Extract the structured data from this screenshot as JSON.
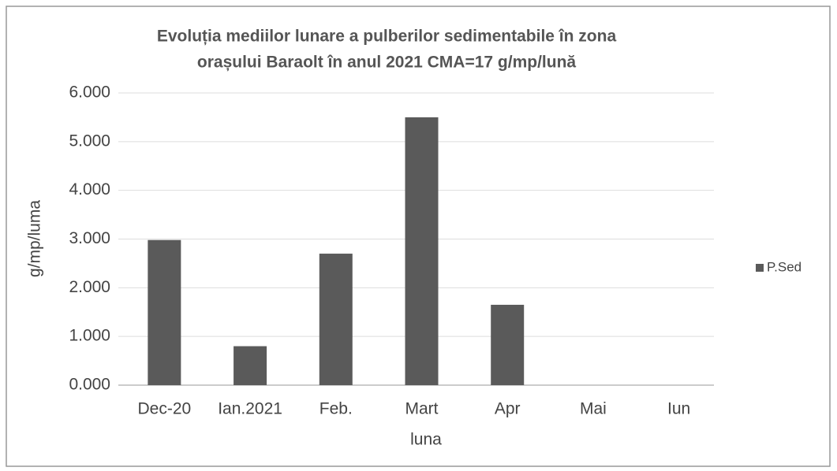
{
  "chart_data": {
    "type": "bar",
    "title": [
      "Evoluția mediilor lunare a pulberilor sedimentabile în zona",
      "orașului Baraolt în anul 2021 CMA=17 g/mp/lună"
    ],
    "x_label": "luna",
    "y_label": "g/mp/luma",
    "categories": [
      "Dec-20",
      "Ian.2021",
      "Feb.",
      "Mart",
      "Apr",
      "Mai",
      "Iun"
    ],
    "series": [
      {
        "name": "P.Sed",
        "color": "#5a5a5a",
        "values": [
          2.98,
          0.8,
          2.7,
          5.5,
          1.65,
          null,
          null
        ]
      }
    ],
    "ylim": [
      0,
      6
    ],
    "yticks": [
      {
        "value": 0,
        "label": "0.000"
      },
      {
        "value": 1,
        "label": "1.000"
      },
      {
        "value": 2,
        "label": "2.000"
      },
      {
        "value": 3,
        "label": "3.000"
      },
      {
        "value": 4,
        "label": "4.000"
      },
      {
        "value": 5,
        "label": "5.000"
      },
      {
        "value": 6,
        "label": "6.000"
      }
    ],
    "grid": true,
    "legend": "right"
  }
}
